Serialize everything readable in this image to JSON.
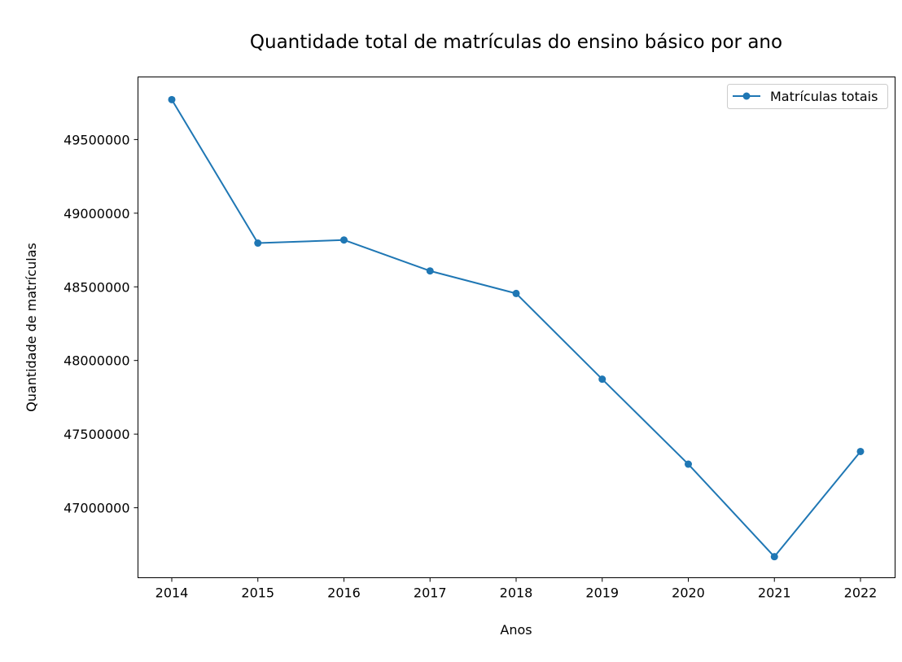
{
  "chart_data": {
    "type": "line",
    "title": "Quantidade total de matrículas do ensino básico por ano",
    "xlabel": "Anos",
    "ylabel": "Quantidade de matrículas",
    "x": [
      "2014",
      "2015",
      "2016",
      "2017",
      "2018",
      "2019",
      "2020",
      "2021",
      "2022"
    ],
    "series": [
      {
        "name": "Matrículas totais",
        "values": [
          49771000,
          48797000,
          48818000,
          48608000,
          48455000,
          47873000,
          47296000,
          46668000,
          47382000
        ]
      }
    ],
    "yticks": [
      47000000,
      47500000,
      48000000,
      48500000,
      49000000,
      49500000
    ],
    "ytick_labels": [
      "47000000",
      "47500000",
      "48000000",
      "48500000",
      "49000000",
      "49500000"
    ],
    "ylim": [
      46525000,
      49925000
    ],
    "grid": false,
    "legend_position": "top-right",
    "colors": {
      "series": "#1f77b4",
      "axes": "#000000",
      "legend_border": "#cccccc"
    }
  }
}
